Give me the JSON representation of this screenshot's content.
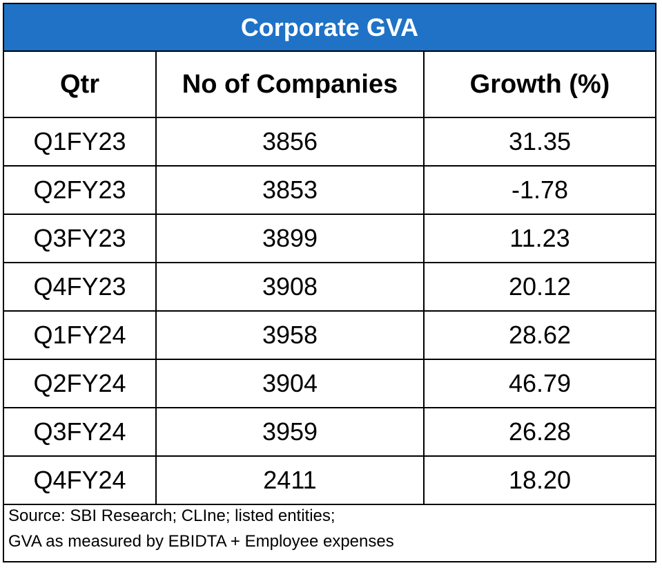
{
  "chart_data": {
    "type": "table",
    "title": "Corporate GVA",
    "columns": [
      "Qtr",
      "No of Companies",
      "Growth (%)"
    ],
    "rows": [
      [
        "Q1FY23",
        "3856",
        "31.35"
      ],
      [
        "Q2FY23",
        "3853",
        "-1.78"
      ],
      [
        "Q3FY23",
        "3899",
        "11.23"
      ],
      [
        "Q4FY23",
        "3908",
        "20.12"
      ],
      [
        "Q1FY24",
        "3958",
        "28.62"
      ],
      [
        "Q2FY24",
        "3904",
        "46.79"
      ],
      [
        "Q3FY24",
        "3959",
        "26.28"
      ],
      [
        "Q4FY24",
        "2411",
        "18.20"
      ]
    ],
    "notes": [
      "Source: SBI Research; CLIne; listed entities;",
      "GVA as measured by EBIDTA + Employee expenses"
    ]
  },
  "colors": {
    "header_bg": "#1f72c6",
    "header_text": "#ffffff",
    "grid_line": "#000000"
  }
}
